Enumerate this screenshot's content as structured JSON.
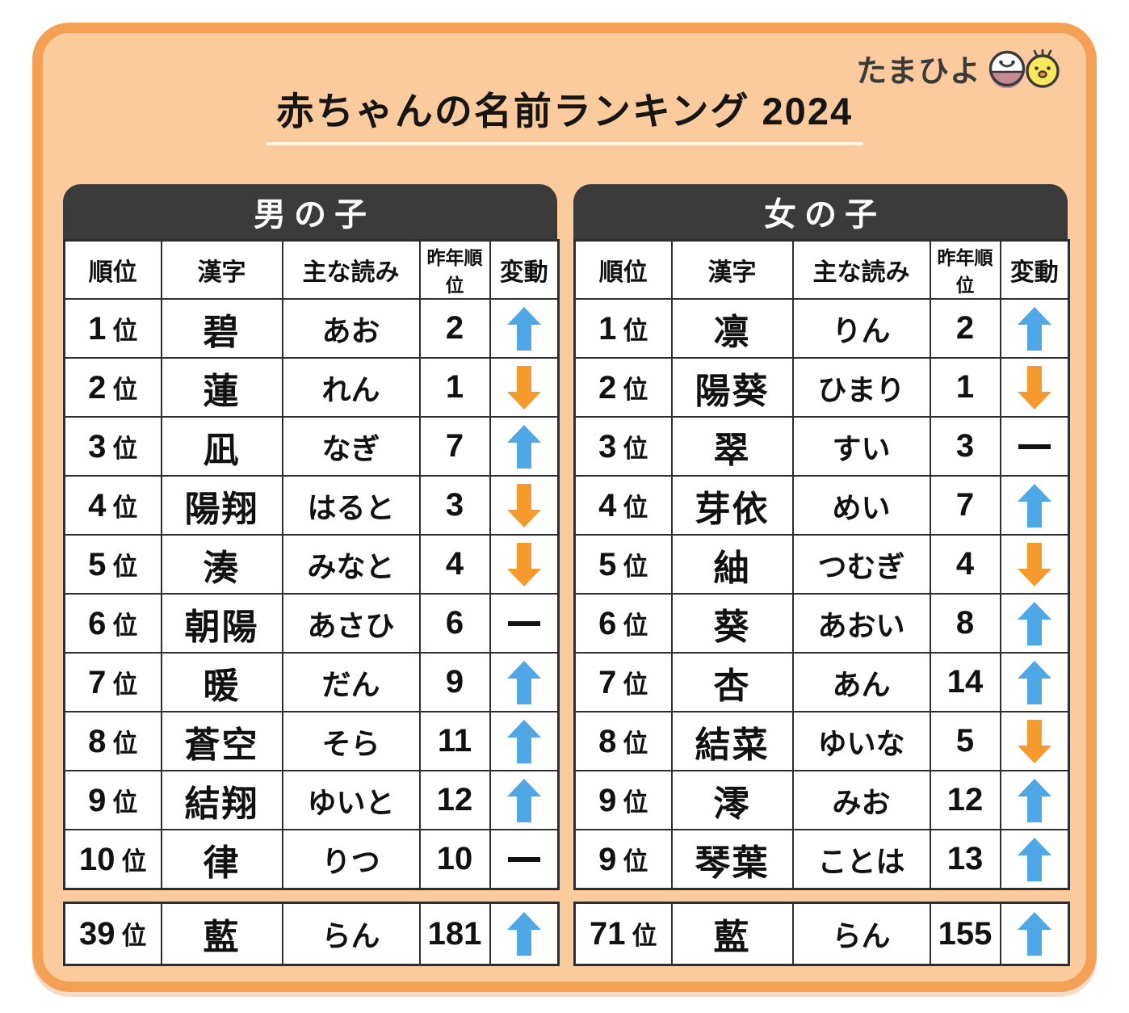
{
  "page": {
    "title": "赤ちゃんの名前ランキング 2024"
  },
  "logo": {
    "text": "たまひよ",
    "icons": [
      "egg-face-icon",
      "chick-face-icon"
    ]
  },
  "columns": [
    "順位",
    "漢字",
    "主な読み",
    "昨年順位",
    "変動"
  ],
  "rank_suffix": "位",
  "colors": {
    "card_border": "#F4A156",
    "card_bg": "#FBCB9E",
    "header_bg": "#3B3B3B",
    "up_arrow": "#4FA7E5",
    "down_arrow": "#F79A2E",
    "no_change": "#111111"
  },
  "tables": [
    {
      "id": "boys",
      "title": "男の子",
      "rows": [
        {
          "rank": "1",
          "kanji": "碧",
          "reading": "あお",
          "last_year": "2",
          "change": "up"
        },
        {
          "rank": "2",
          "kanji": "蓮",
          "reading": "れん",
          "last_year": "1",
          "change": "down"
        },
        {
          "rank": "3",
          "kanji": "凪",
          "reading": "なぎ",
          "last_year": "7",
          "change": "up"
        },
        {
          "rank": "4",
          "kanji": "陽翔",
          "reading": "はると",
          "last_year": "3",
          "change": "down"
        },
        {
          "rank": "5",
          "kanji": "湊",
          "reading": "みなと",
          "last_year": "4",
          "change": "down"
        },
        {
          "rank": "6",
          "kanji": "朝陽",
          "reading": "あさひ",
          "last_year": "6",
          "change": "same"
        },
        {
          "rank": "7",
          "kanji": "暖",
          "reading": "だん",
          "last_year": "9",
          "change": "up"
        },
        {
          "rank": "8",
          "kanji": "蒼空",
          "reading": "そら",
          "last_year": "11",
          "change": "up"
        },
        {
          "rank": "9",
          "kanji": "結翔",
          "reading": "ゆいと",
          "last_year": "12",
          "change": "up"
        },
        {
          "rank": "10",
          "kanji": "律",
          "reading": "りつ",
          "last_year": "10",
          "change": "same"
        }
      ],
      "extra_row": {
        "rank": "39",
        "kanji": "藍",
        "reading": "らん",
        "last_year": "181",
        "change": "up"
      }
    },
    {
      "id": "girls",
      "title": "女の子",
      "rows": [
        {
          "rank": "1",
          "kanji": "凛",
          "reading": "りん",
          "last_year": "2",
          "change": "up"
        },
        {
          "rank": "2",
          "kanji": "陽葵",
          "reading": "ひまり",
          "last_year": "1",
          "change": "down"
        },
        {
          "rank": "3",
          "kanji": "翠",
          "reading": "すい",
          "last_year": "3",
          "change": "same"
        },
        {
          "rank": "4",
          "kanji": "芽依",
          "reading": "めい",
          "last_year": "7",
          "change": "up"
        },
        {
          "rank": "5",
          "kanji": "紬",
          "reading": "つむぎ",
          "last_year": "4",
          "change": "down"
        },
        {
          "rank": "6",
          "kanji": "葵",
          "reading": "あおい",
          "last_year": "8",
          "change": "up"
        },
        {
          "rank": "7",
          "kanji": "杏",
          "reading": "あん",
          "last_year": "14",
          "change": "up"
        },
        {
          "rank": "8",
          "kanji": "結菜",
          "reading": "ゆいな",
          "last_year": "5",
          "change": "down"
        },
        {
          "rank": "9",
          "kanji": "澪",
          "reading": "みお",
          "last_year": "12",
          "change": "up"
        },
        {
          "rank": "9",
          "kanji": "琴葉",
          "reading": "ことは",
          "last_year": "13",
          "change": "up"
        }
      ],
      "extra_row": {
        "rank": "71",
        "kanji": "藍",
        "reading": "らん",
        "last_year": "155",
        "change": "up"
      }
    }
  ],
  "chart_data": [
    {
      "type": "table",
      "title": "男の子",
      "columns": [
        "順位",
        "漢字",
        "主な読み",
        "昨年順位",
        "変動"
      ],
      "rows": [
        [
          "1位",
          "碧",
          "あお",
          "2",
          "up"
        ],
        [
          "2位",
          "蓮",
          "れん",
          "1",
          "down"
        ],
        [
          "3位",
          "凪",
          "なぎ",
          "7",
          "up"
        ],
        [
          "4位",
          "陽翔",
          "はると",
          "3",
          "down"
        ],
        [
          "5位",
          "湊",
          "みなと",
          "4",
          "down"
        ],
        [
          "6位",
          "朝陽",
          "あさひ",
          "6",
          "same"
        ],
        [
          "7位",
          "暖",
          "だん",
          "9",
          "up"
        ],
        [
          "8位",
          "蒼空",
          "そら",
          "11",
          "up"
        ],
        [
          "9位",
          "結翔",
          "ゆいと",
          "12",
          "up"
        ],
        [
          "10位",
          "律",
          "りつ",
          "10",
          "same"
        ],
        [
          "39位",
          "藍",
          "らん",
          "181",
          "up"
        ]
      ]
    },
    {
      "type": "table",
      "title": "女の子",
      "columns": [
        "順位",
        "漢字",
        "主な読み",
        "昨年順位",
        "変動"
      ],
      "rows": [
        [
          "1位",
          "凛",
          "りん",
          "2",
          "up"
        ],
        [
          "2位",
          "陽葵",
          "ひまり",
          "1",
          "down"
        ],
        [
          "3位",
          "翠",
          "すい",
          "3",
          "same"
        ],
        [
          "4位",
          "芽依",
          "めい",
          "7",
          "up"
        ],
        [
          "5位",
          "紬",
          "つむぎ",
          "4",
          "down"
        ],
        [
          "6位",
          "葵",
          "あおい",
          "8",
          "up"
        ],
        [
          "7位",
          "杏",
          "あん",
          "14",
          "up"
        ],
        [
          "8位",
          "結菜",
          "ゆいな",
          "5",
          "down"
        ],
        [
          "9位",
          "澪",
          "みお",
          "12",
          "up"
        ],
        [
          "9位",
          "琴葉",
          "ことは",
          "13",
          "up"
        ],
        [
          "71位",
          "藍",
          "らん",
          "155",
          "up"
        ]
      ]
    }
  ]
}
